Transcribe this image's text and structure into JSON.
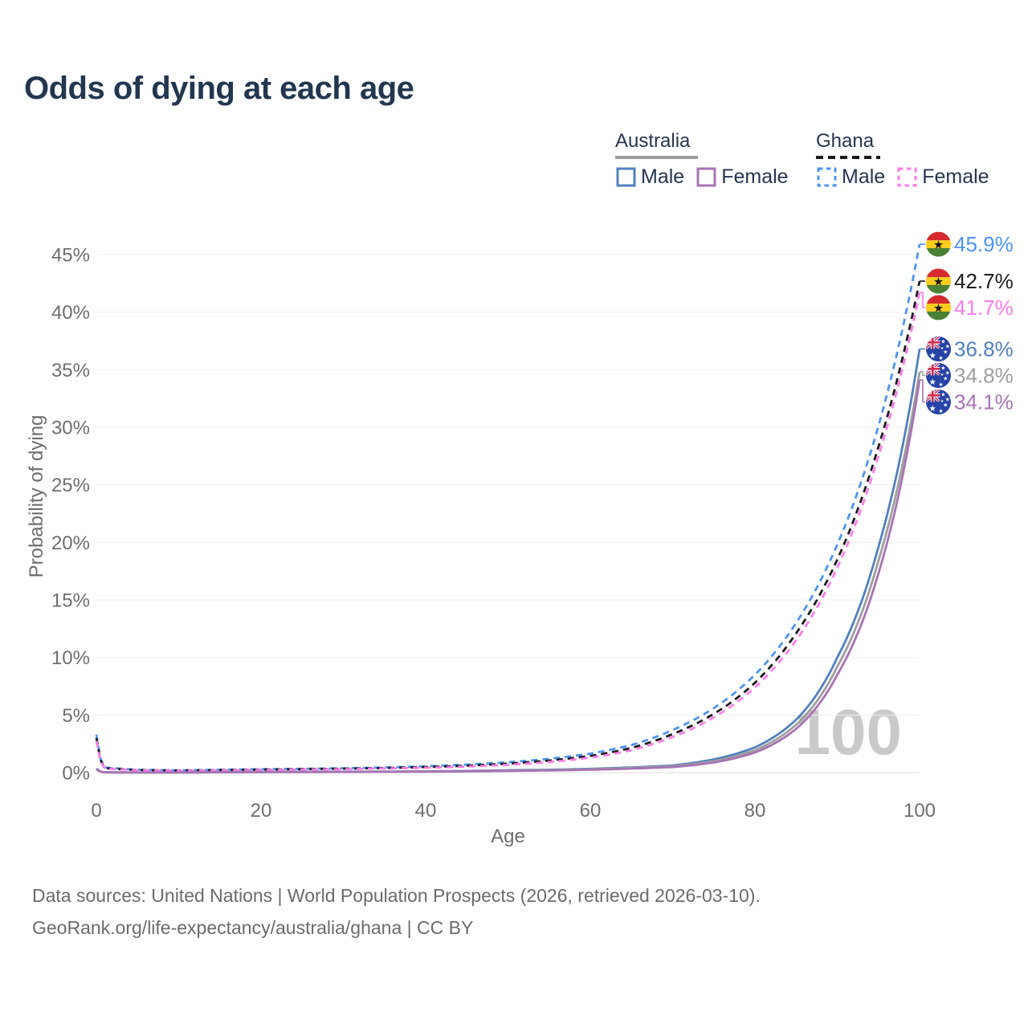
{
  "page": {
    "title": "Odds of dying at each age",
    "watermark_age": "100",
    "source_line1": "Data sources: United Nations | World Population Prospects (2026, retrieved 2026-03-10).",
    "source_line2": "GeoRank.org/life-expectancy/australia/ghana | CC BY"
  },
  "legend": {
    "groups": [
      {
        "label": "Australia",
        "line_style": "solid",
        "underline_color": "#9e9e9e",
        "items": [
          {
            "label": "Male",
            "color": "#5180bf"
          },
          {
            "label": "Female",
            "color": "#a873b3"
          }
        ]
      },
      {
        "label": "Ghana",
        "line_style": "dashed",
        "underline_color": "#191919",
        "items": [
          {
            "label": "Male",
            "color": "#4d94f2"
          },
          {
            "label": "Female",
            "color": "#ff7ce8"
          }
        ]
      }
    ]
  },
  "chart_data": {
    "type": "line",
    "title": "Odds of dying at each age",
    "xlabel": "Age",
    "ylabel": "Probability of dying",
    "xlim": [
      0,
      100
    ],
    "ylim_pct": [
      0,
      46
    ],
    "grid": "horizontal",
    "x_ticks": [
      0,
      20,
      40,
      60,
      80,
      100
    ],
    "x_tick_labels": [
      "0",
      "20",
      "40",
      "60",
      "80",
      "100"
    ],
    "y_ticks": [
      0,
      5,
      10,
      15,
      20,
      25,
      30,
      35,
      40,
      45
    ],
    "y_tick_labels": [
      "0%",
      "5%",
      "10%",
      "15%",
      "20%",
      "25%",
      "30%",
      "35%",
      "40%",
      "45%"
    ],
    "ages": [
      0,
      1,
      5,
      10,
      15,
      20,
      25,
      30,
      35,
      40,
      45,
      50,
      55,
      60,
      65,
      70,
      75,
      80,
      85,
      90,
      95,
      100
    ],
    "series": [
      {
        "id": "ghana-male",
        "name": "Ghana Male",
        "country": "Ghana",
        "sex": "Male",
        "line_style": "dashed",
        "color": "#4d94f2",
        "flag": "ghana",
        "end_label": "45.9%",
        "values_pct": [
          3.3,
          0.45,
          0.25,
          0.2,
          0.25,
          0.3,
          0.33,
          0.38,
          0.45,
          0.55,
          0.7,
          0.9,
          1.2,
          1.65,
          2.4,
          3.7,
          5.6,
          8.5,
          13.0,
          19.8,
          30.1,
          45.9
        ]
      },
      {
        "id": "ghana-total",
        "name": "Ghana Both sexes",
        "country": "Ghana",
        "sex": "Both",
        "line_style": "dashed",
        "color": "#1c1c1c",
        "flag": "ghana",
        "end_label": "42.7%",
        "values_pct": [
          3.0,
          0.4,
          0.22,
          0.18,
          0.22,
          0.26,
          0.3,
          0.34,
          0.4,
          0.48,
          0.6,
          0.78,
          1.05,
          1.45,
          2.15,
          3.35,
          5.1,
          7.8,
          12.1,
          18.5,
          28.3,
          42.7
        ]
      },
      {
        "id": "ghana-female",
        "name": "Ghana Female",
        "country": "Ghana",
        "sex": "Female",
        "line_style": "dashed",
        "color": "#ff7ce8",
        "flag": "ghana",
        "end_label": "41.7%",
        "values_pct": [
          2.75,
          0.36,
          0.2,
          0.16,
          0.2,
          0.23,
          0.26,
          0.3,
          0.36,
          0.42,
          0.52,
          0.68,
          0.92,
          1.3,
          1.95,
          3.1,
          4.8,
          7.4,
          11.5,
          17.8,
          27.5,
          41.7
        ]
      },
      {
        "id": "australia-male",
        "name": "Australia Male",
        "country": "Australia",
        "sex": "Male",
        "line_style": "solid",
        "color": "#5180bf",
        "flag": "australia",
        "end_label": "36.8%",
        "values_pct": [
          0.35,
          0.025,
          0.01,
          0.012,
          0.04,
          0.06,
          0.07,
          0.08,
          0.09,
          0.11,
          0.15,
          0.21,
          0.25,
          0.33,
          0.45,
          0.62,
          1.15,
          2.2,
          4.6,
          10.0,
          19.6,
          36.8
        ]
      },
      {
        "id": "australia-total",
        "name": "Australia Both sexes",
        "country": "Australia",
        "sex": "Both",
        "line_style": "solid",
        "color": "#9e9e9e",
        "flag": "australia",
        "end_label": "34.8%",
        "values_pct": [
          0.32,
          0.022,
          0.009,
          0.01,
          0.032,
          0.05,
          0.055,
          0.065,
          0.075,
          0.095,
          0.13,
          0.18,
          0.22,
          0.29,
          0.4,
          0.55,
          1.0,
          1.95,
          4.15,
          9.2,
          18.4,
          34.8
        ]
      },
      {
        "id": "australia-female",
        "name": "Australia Female",
        "country": "Australia",
        "sex": "Female",
        "line_style": "solid",
        "color": "#a873b3",
        "flag": "australia",
        "end_label": "34.1%",
        "values_pct": [
          0.28,
          0.02,
          0.008,
          0.009,
          0.025,
          0.035,
          0.045,
          0.055,
          0.065,
          0.08,
          0.11,
          0.15,
          0.19,
          0.25,
          0.35,
          0.48,
          0.88,
          1.75,
          3.8,
          8.5,
          17.3,
          34.1
        ]
      }
    ],
    "legend_position": "top-right"
  }
}
